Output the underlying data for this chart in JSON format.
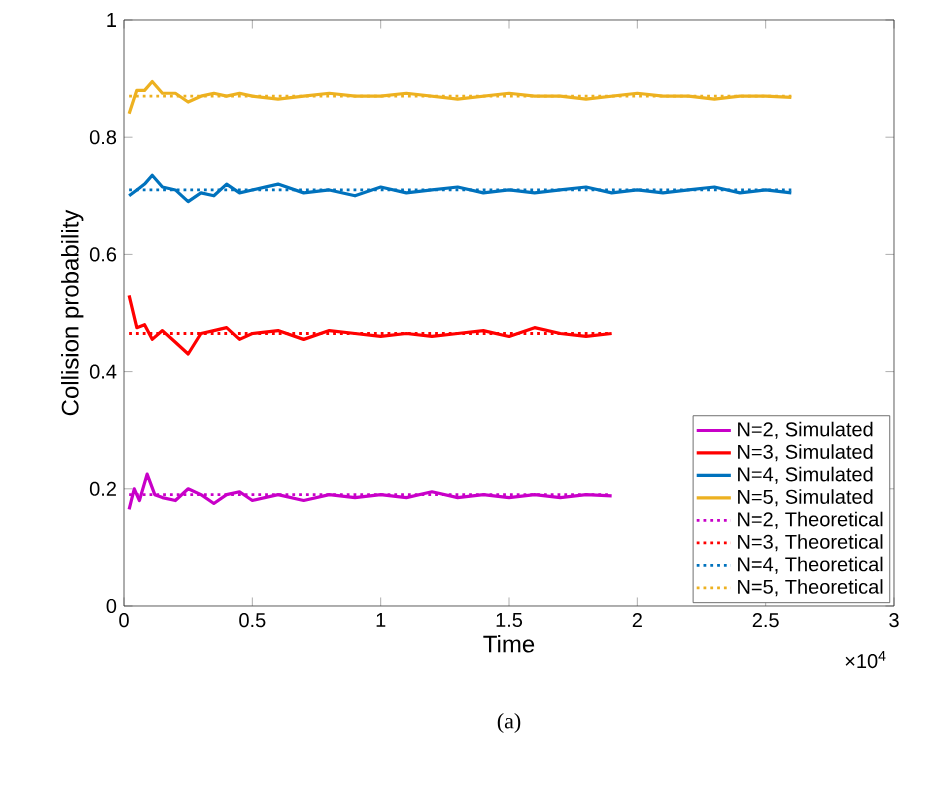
{
  "chart_data": {
    "type": "line",
    "xlabel": "Time",
    "ylabel": "Collision probability",
    "xlim": [
      0,
      3
    ],
    "ylim": [
      0,
      1
    ],
    "xticks": [
      0,
      0.5,
      1,
      1.5,
      2,
      2.5,
      3
    ],
    "yticks": [
      0,
      0.2,
      0.4,
      0.6,
      0.8,
      1
    ],
    "legend": "bottom right",
    "marker": "none",
    "annotations": [
      "×10$^{4}$",
      "(a)"
    ],
    "series": [
      {
        "name": "N=2, Simulated",
        "color": "#c800c8",
        "line_style": "solid",
        "x": [
          0.02,
          0.04,
          0.06,
          0.09,
          0.12,
          0.15,
          0.2,
          0.25,
          0.3,
          0.35,
          0.4,
          0.45,
          0.5,
          0.6,
          0.7,
          0.8,
          0.9,
          1,
          1.1,
          1.2,
          1.3,
          1.4,
          1.5,
          1.6,
          1.7,
          1.8,
          1.9
        ],
        "values": [
          0.165,
          0.2,
          0.18,
          0.225,
          0.19,
          0.185,
          0.18,
          0.2,
          0.19,
          0.175,
          0.19,
          0.195,
          0.18,
          0.19,
          0.18,
          0.19,
          0.185,
          0.19,
          0.185,
          0.195,
          0.185,
          0.19,
          0.185,
          0.19,
          0.185,
          0.19,
          0.188
        ]
      },
      {
        "name": "N=3, Simulated",
        "color": "#ff0000",
        "line_style": "solid",
        "x": [
          0.02,
          0.05,
          0.08,
          0.11,
          0.15,
          0.2,
          0.25,
          0.3,
          0.35,
          0.4,
          0.45,
          0.5,
          0.6,
          0.7,
          0.8,
          0.9,
          1,
          1.1,
          1.2,
          1.3,
          1.4,
          1.5,
          1.6,
          1.7,
          1.8,
          1.9
        ],
        "values": [
          0.53,
          0.475,
          0.48,
          0.455,
          0.47,
          0.45,
          0.43,
          0.465,
          0.47,
          0.475,
          0.455,
          0.465,
          0.47,
          0.455,
          0.47,
          0.465,
          0.46,
          0.465,
          0.46,
          0.465,
          0.47,
          0.46,
          0.475,
          0.465,
          0.46,
          0.465
        ]
      },
      {
        "name": "N=4, Simulated",
        "color": "#0072bd",
        "line_style": "solid",
        "x": [
          0.02,
          0.05,
          0.08,
          0.11,
          0.15,
          0.2,
          0.25,
          0.3,
          0.35,
          0.4,
          0.45,
          0.5,
          0.6,
          0.7,
          0.8,
          0.9,
          1,
          1.1,
          1.2,
          1.3,
          1.4,
          1.5,
          1.6,
          1.7,
          1.8,
          1.9,
          2,
          2.1,
          2.2,
          2.3,
          2.4,
          2.5,
          2.6
        ],
        "values": [
          0.7,
          0.71,
          0.72,
          0.735,
          0.715,
          0.71,
          0.69,
          0.705,
          0.7,
          0.72,
          0.705,
          0.71,
          0.72,
          0.705,
          0.71,
          0.7,
          0.715,
          0.705,
          0.71,
          0.715,
          0.705,
          0.71,
          0.705,
          0.71,
          0.715,
          0.705,
          0.71,
          0.705,
          0.71,
          0.715,
          0.705,
          0.71,
          0.705
        ]
      },
      {
        "name": "N=5, Simulated",
        "color": "#edb120",
        "line_style": "solid",
        "x": [
          0.02,
          0.05,
          0.08,
          0.11,
          0.15,
          0.2,
          0.25,
          0.3,
          0.35,
          0.4,
          0.45,
          0.5,
          0.6,
          0.7,
          0.8,
          0.9,
          1,
          1.1,
          1.2,
          1.3,
          1.4,
          1.5,
          1.6,
          1.7,
          1.8,
          1.9,
          2,
          2.1,
          2.2,
          2.3,
          2.4,
          2.5,
          2.6
        ],
        "values": [
          0.84,
          0.88,
          0.88,
          0.895,
          0.875,
          0.875,
          0.86,
          0.87,
          0.875,
          0.87,
          0.875,
          0.87,
          0.865,
          0.87,
          0.875,
          0.87,
          0.87,
          0.875,
          0.87,
          0.865,
          0.87,
          0.875,
          0.87,
          0.87,
          0.865,
          0.87,
          0.875,
          0.87,
          0.87,
          0.865,
          0.87,
          0.87,
          0.868
        ]
      },
      {
        "name": "N=2, Theoretical",
        "color": "#c800c8",
        "line_style": "dotted",
        "x": [
          0.02,
          1.9
        ],
        "values": [
          0.19,
          0.19
        ]
      },
      {
        "name": "N=3, Theoretical",
        "color": "#ff0000",
        "line_style": "dotted",
        "x": [
          0.02,
          1.9
        ],
        "values": [
          0.465,
          0.465
        ]
      },
      {
        "name": "N=4, Theoretical",
        "color": "#0072bd",
        "line_style": "dotted",
        "x": [
          0.02,
          2.6
        ],
        "values": [
          0.71,
          0.71
        ]
      },
      {
        "name": "N=5, Theoretical",
        "color": "#edb120",
        "line_style": "dotted",
        "x": [
          0.02,
          2.6
        ],
        "values": [
          0.87,
          0.87
        ]
      }
    ]
  }
}
